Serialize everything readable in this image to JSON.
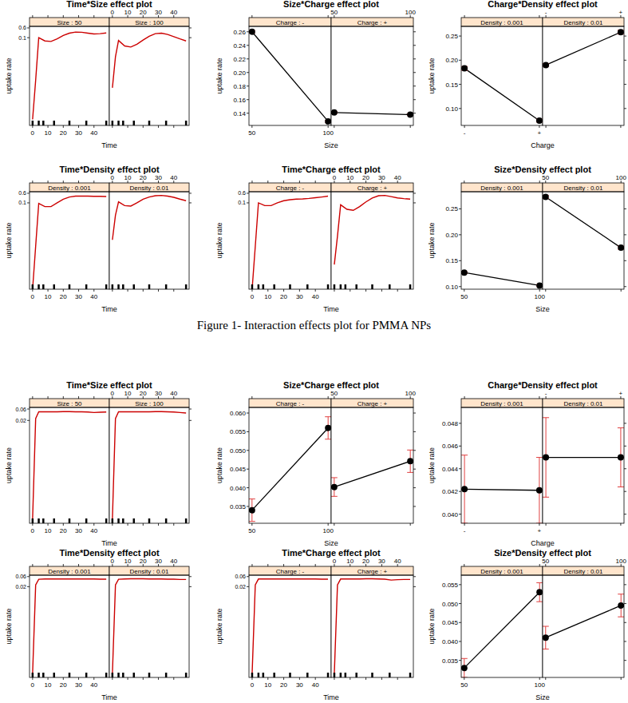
{
  "caption": "Figure 1- Interaction effects plot for PMMA NPs",
  "chart_data": [
    {
      "type": "line",
      "title": "Time*Size effect plot",
      "x_label": "Time",
      "y_label": "uptake rate",
      "log": "y",
      "xlim": [
        -2,
        50
      ],
      "xticks": [
        0,
        10,
        20,
        30,
        40
      ],
      "ylim": [
        1e-08,
        0.8
      ],
      "yticks": [
        0.1,
        0.6
      ],
      "x": [
        0,
        2,
        4,
        8,
        12,
        16,
        20,
        24,
        28,
        32,
        36,
        40,
        44,
        48
      ],
      "rug": [
        0,
        4,
        7,
        14,
        24,
        35,
        48
      ],
      "marker": "none",
      "line_style": "solid",
      "series": [
        {
          "name": "Size : 50",
          "color": "#cc0000",
          "values": [
            3e-08,
            4e-05,
            0.1,
            0.055,
            0.05,
            0.08,
            0.15,
            0.23,
            0.28,
            0.27,
            0.23,
            0.2,
            0.21,
            0.24
          ]
        },
        {
          "name": "Size : 100",
          "color": "#cc0000",
          "values": [
            1e-05,
            0.003,
            0.06,
            0.022,
            0.018,
            0.03,
            0.065,
            0.13,
            0.21,
            0.23,
            0.18,
            0.12,
            0.08,
            0.055
          ]
        }
      ]
    },
    {
      "type": "dot",
      "title": "Size*Charge effect plot",
      "x_label": "Size",
      "y_label": "uptake rate",
      "x": [
        50,
        100
      ],
      "xlim": [
        48,
        102
      ],
      "xticks": [
        50,
        100
      ],
      "ylim": [
        0.122,
        0.268
      ],
      "yticks": [
        0.14,
        0.16,
        0.18,
        {
          "value": 0.2,
          "label": "0.20"
        },
        0.22,
        0.24,
        0.26
      ],
      "marker": "circle",
      "line_style": "solid",
      "series": [
        {
          "name": "Charge : -",
          "color": "#000000",
          "values": [
            0.26,
            0.128
          ],
          "errors": [
            0.002,
            0.0015
          ]
        },
        {
          "name": "Charge : +",
          "color": "#000000",
          "values": [
            0.141,
            0.138
          ],
          "errors": [
            0.0015,
            0.0015
          ]
        }
      ]
    },
    {
      "type": "dot",
      "title": "Charge*Density effect plot",
      "x_label": "Charge",
      "y_label": "uptake rate",
      "categories": [
        "-",
        "+"
      ],
      "ylim": [
        0.065,
        0.27
      ],
      "yticks": [
        {
          "value": 0.1,
          "label": "0.10"
        },
        0.15,
        {
          "value": 0.2,
          "label": "0.20"
        },
        0.25
      ],
      "marker": "circle",
      "line_style": "solid",
      "series": [
        {
          "name": "Density : 0.001",
          "color": "#000000",
          "values": [
            0.183,
            0.075
          ],
          "errors": [
            0.004,
            0.003
          ]
        },
        {
          "name": "Density : 0.01",
          "color": "#000000",
          "values": [
            0.19,
            0.258
          ],
          "errors": [
            0.003,
            0.004
          ]
        }
      ]
    },
    {
      "type": "line",
      "title": "Time*Density effect plot",
      "x_label": "Time",
      "y_label": "uptake rate",
      "log": "y",
      "xlim": [
        -2,
        50
      ],
      "xticks": [
        0,
        10,
        20,
        30,
        40
      ],
      "ylim": [
        1e-08,
        0.8
      ],
      "yticks": [
        0.1,
        0.6
      ],
      "x": [
        0,
        2,
        4,
        8,
        12,
        16,
        20,
        24,
        28,
        32,
        36,
        40,
        44,
        48
      ],
      "rug": [
        0,
        4,
        7,
        14,
        24,
        35,
        48
      ],
      "marker": "none",
      "line_style": "solid",
      "series": [
        {
          "name": "Density : 0.001",
          "color": "#cc0000",
          "values": [
            1e-08,
            3e-05,
            0.09,
            0.05,
            0.05,
            0.1,
            0.2,
            0.3,
            0.35,
            0.36,
            0.35,
            0.34,
            0.34,
            0.33
          ]
        },
        {
          "name": "Density : 0.01",
          "color": "#cc0000",
          "values": [
            0.0001,
            0.01,
            0.12,
            0.06,
            0.055,
            0.1,
            0.2,
            0.3,
            0.38,
            0.4,
            0.35,
            0.28,
            0.2,
            0.15
          ]
        }
      ]
    },
    {
      "type": "line",
      "title": "Time*Charge effect plot",
      "x_label": "Time",
      "y_label": "uptake rate",
      "log": "y",
      "xlim": [
        -2,
        50
      ],
      "xticks": [
        0,
        10,
        20,
        30,
        40
      ],
      "ylim": [
        1e-08,
        0.8
      ],
      "yticks": [
        0.1,
        0.6
      ],
      "x": [
        0,
        2,
        4,
        8,
        12,
        16,
        20,
        24,
        28,
        32,
        36,
        40,
        44,
        48
      ],
      "rug": [
        0,
        4,
        7,
        14,
        24,
        35,
        48
      ],
      "marker": "none",
      "line_style": "solid",
      "series": [
        {
          "name": "Charge : -",
          "color": "#cc0000",
          "values": [
            1e-08,
            3e-05,
            0.1,
            0.06,
            0.06,
            0.1,
            0.15,
            0.18,
            0.2,
            0.21,
            0.23,
            0.26,
            0.3,
            0.35
          ]
        },
        {
          "name": "Charge : +",
          "color": "#cc0000",
          "values": [
            1e-06,
            0.0002,
            0.07,
            0.03,
            0.025,
            0.05,
            0.12,
            0.25,
            0.38,
            0.4,
            0.32,
            0.25,
            0.22,
            0.2
          ]
        }
      ]
    },
    {
      "type": "dot",
      "title": "Size*Density effect plot",
      "x_label": "Size",
      "y_label": "uptake rate",
      "x": [
        50,
        100
      ],
      "xlim": [
        48,
        102
      ],
      "xticks": [
        50,
        100
      ],
      "ylim": [
        0.095,
        0.283
      ],
      "yticks": [
        {
          "value": 0.1,
          "label": "0.10"
        },
        0.15,
        {
          "value": 0.2,
          "label": "0.20"
        },
        0.25
      ],
      "marker": "circle",
      "line_style": "solid",
      "series": [
        {
          "name": "Density : 0.001",
          "color": "#000000",
          "values": [
            0.127,
            0.102
          ],
          "errors": [
            0.002,
            0.002
          ]
        },
        {
          "name": "Density : 0.01",
          "color": "#000000",
          "values": [
            0.273,
            0.175
          ],
          "errors": [
            0.003,
            0.003
          ]
        }
      ]
    },
    {
      "type": "line",
      "title": "Time*Size effect plot",
      "x_label": "Time",
      "y_label": "uptake rate",
      "log": "y",
      "xlim": [
        -2,
        50
      ],
      "xticks": [
        0,
        10,
        20,
        30,
        40
      ],
      "ylim": [
        1e-06,
        0.07
      ],
      "yticks": [
        0.02,
        0.06
      ],
      "x": [
        0,
        2,
        4,
        8,
        12,
        16,
        20,
        24,
        28,
        32,
        36,
        40,
        44,
        48
      ],
      "rug": [
        0,
        4,
        7,
        14,
        24,
        35,
        48
      ],
      "marker": "none",
      "line_style": "solid",
      "series": [
        {
          "name": "Size : 50",
          "color": "#cc0000",
          "values": [
            1.5e-06,
            0.024,
            0.046,
            0.046,
            0.046,
            0.046,
            0.047,
            0.047,
            0.046,
            0.046,
            0.045,
            0.043,
            0.044,
            0.045
          ]
        },
        {
          "name": "Size : 100",
          "color": "#cc0000",
          "values": [
            1.5e-06,
            0.024,
            0.046,
            0.046,
            0.046,
            0.046,
            0.046,
            0.046,
            0.047,
            0.047,
            0.046,
            0.045,
            0.043,
            0.041
          ]
        }
      ]
    },
    {
      "type": "dot",
      "title": "Size*Charge effect plot",
      "x_label": "Size",
      "y_label": "uptake rate",
      "x": [
        50,
        100
      ],
      "xlim": [
        48,
        102
      ],
      "xticks": [
        50,
        100
      ],
      "ylim": [
        0.0305,
        0.0615
      ],
      "yticks": [
        0.035,
        {
          "value": 0.04,
          "label": "0.040"
        },
        0.045,
        {
          "value": 0.05,
          "label": "0.050"
        },
        0.055,
        {
          "value": 0.06,
          "label": "0.060"
        }
      ],
      "marker": "circle",
      "line_style": "solid",
      "series": [
        {
          "name": "Charge : -",
          "color": "#000000",
          "values": [
            0.034,
            0.056
          ],
          "errors": [
            0.003,
            0.003
          ]
        },
        {
          "name": "Charge : +",
          "color": "#000000",
          "values": [
            0.0402,
            0.0471
          ],
          "errors": [
            0.0025,
            0.003
          ]
        }
      ]
    },
    {
      "type": "dot",
      "title": "Charge*Density effect plot",
      "x_label": "Charge",
      "y_label": "uptake rate",
      "categories": [
        "-",
        "+"
      ],
      "ylim": [
        0.0392,
        0.0494
      ],
      "yticks": [
        {
          "value": 0.04,
          "label": "0.040"
        },
        0.042,
        0.044,
        0.046,
        0.048
      ],
      "marker": "circle",
      "line_style": "solid",
      "series": [
        {
          "name": "Density : 0.001",
          "color": "#000000",
          "values": [
            0.0422,
            0.0421
          ],
          "errors": [
            0.003,
            0.0029
          ]
        },
        {
          "name": "Density : 0.01",
          "color": "#000000",
          "values": [
            0.045,
            0.045
          ],
          "errors": [
            0.0035,
            0.0026
          ]
        }
      ]
    },
    {
      "type": "line",
      "title": "Time*Density effect plot",
      "x_label": "Time",
      "y_label": "uptake rate",
      "log": "y",
      "xlim": [
        -2,
        50
      ],
      "xticks": [
        0,
        10,
        20,
        30,
        40
      ],
      "ylim": [
        1e-06,
        0.07
      ],
      "yticks": [
        0.02,
        0.06
      ],
      "x": [
        0,
        2,
        4,
        8,
        12,
        16,
        20,
        24,
        28,
        32,
        36,
        40,
        44,
        48
      ],
      "rug": [
        0,
        4,
        7,
        14,
        24,
        35,
        48
      ],
      "marker": "none",
      "line_style": "solid",
      "series": [
        {
          "name": "Density : 0.001",
          "color": "#cc0000",
          "values": [
            1.5e-06,
            0.024,
            0.045,
            0.046,
            0.046,
            0.046,
            0.046,
            0.046,
            0.046,
            0.046,
            0.046,
            0.046,
            0.045,
            0.045
          ]
        },
        {
          "name": "Density : 0.01",
          "color": "#cc0000",
          "values": [
            1.5e-06,
            0.024,
            0.045,
            0.046,
            0.047,
            0.047,
            0.047,
            0.046,
            0.046,
            0.046,
            0.045,
            0.045,
            0.044,
            0.044
          ]
        }
      ]
    },
    {
      "type": "line",
      "title": "Time*Charge effect plot",
      "x_label": "Time",
      "y_label": "uptake rate",
      "log": "y",
      "xlim": [
        -2,
        50
      ],
      "xticks": [
        0,
        10,
        20,
        30,
        40
      ],
      "ylim": [
        1e-06,
        0.07
      ],
      "yticks": [
        0.02,
        0.06
      ],
      "x": [
        0,
        2,
        4,
        8,
        12,
        16,
        20,
        24,
        28,
        32,
        36,
        40,
        44,
        48
      ],
      "rug": [
        0,
        4,
        7,
        14,
        24,
        35,
        48
      ],
      "marker": "none",
      "line_style": "solid",
      "series": [
        {
          "name": "Charge : -",
          "color": "#cc0000",
          "values": [
            1.5e-06,
            0.024,
            0.046,
            0.046,
            0.046,
            0.046,
            0.046,
            0.046,
            0.046,
            0.046,
            0.046,
            0.046,
            0.045,
            0.045
          ]
        },
        {
          "name": "Charge : +",
          "color": "#cc0000",
          "values": [
            1.5e-06,
            0.024,
            0.046,
            0.046,
            0.046,
            0.046,
            0.047,
            0.047,
            0.046,
            0.045,
            0.041,
            0.043,
            0.044,
            0.044
          ]
        }
      ]
    },
    {
      "type": "dot",
      "title": "Size*Density effect plot",
      "x_label": "Size",
      "y_label": "uptake rate",
      "x": [
        50,
        100
      ],
      "xlim": [
        48,
        102
      ],
      "xticks": [
        50,
        100
      ],
      "ylim": [
        0.0305,
        0.0575
      ],
      "yticks": [
        0.035,
        {
          "value": 0.04,
          "label": "0.040"
        },
        0.045,
        {
          "value": 0.05,
          "label": "0.050"
        },
        0.055
      ],
      "marker": "circle",
      "line_style": "solid",
      "series": [
        {
          "name": "Density : 0.001",
          "color": "#000000",
          "values": [
            0.033,
            0.053
          ],
          "errors": [
            0.0025,
            0.0025
          ]
        },
        {
          "name": "Density : 0.01",
          "color": "#000000",
          "values": [
            0.041,
            0.0495
          ],
          "errors": [
            0.003,
            0.003
          ]
        }
      ]
    }
  ]
}
